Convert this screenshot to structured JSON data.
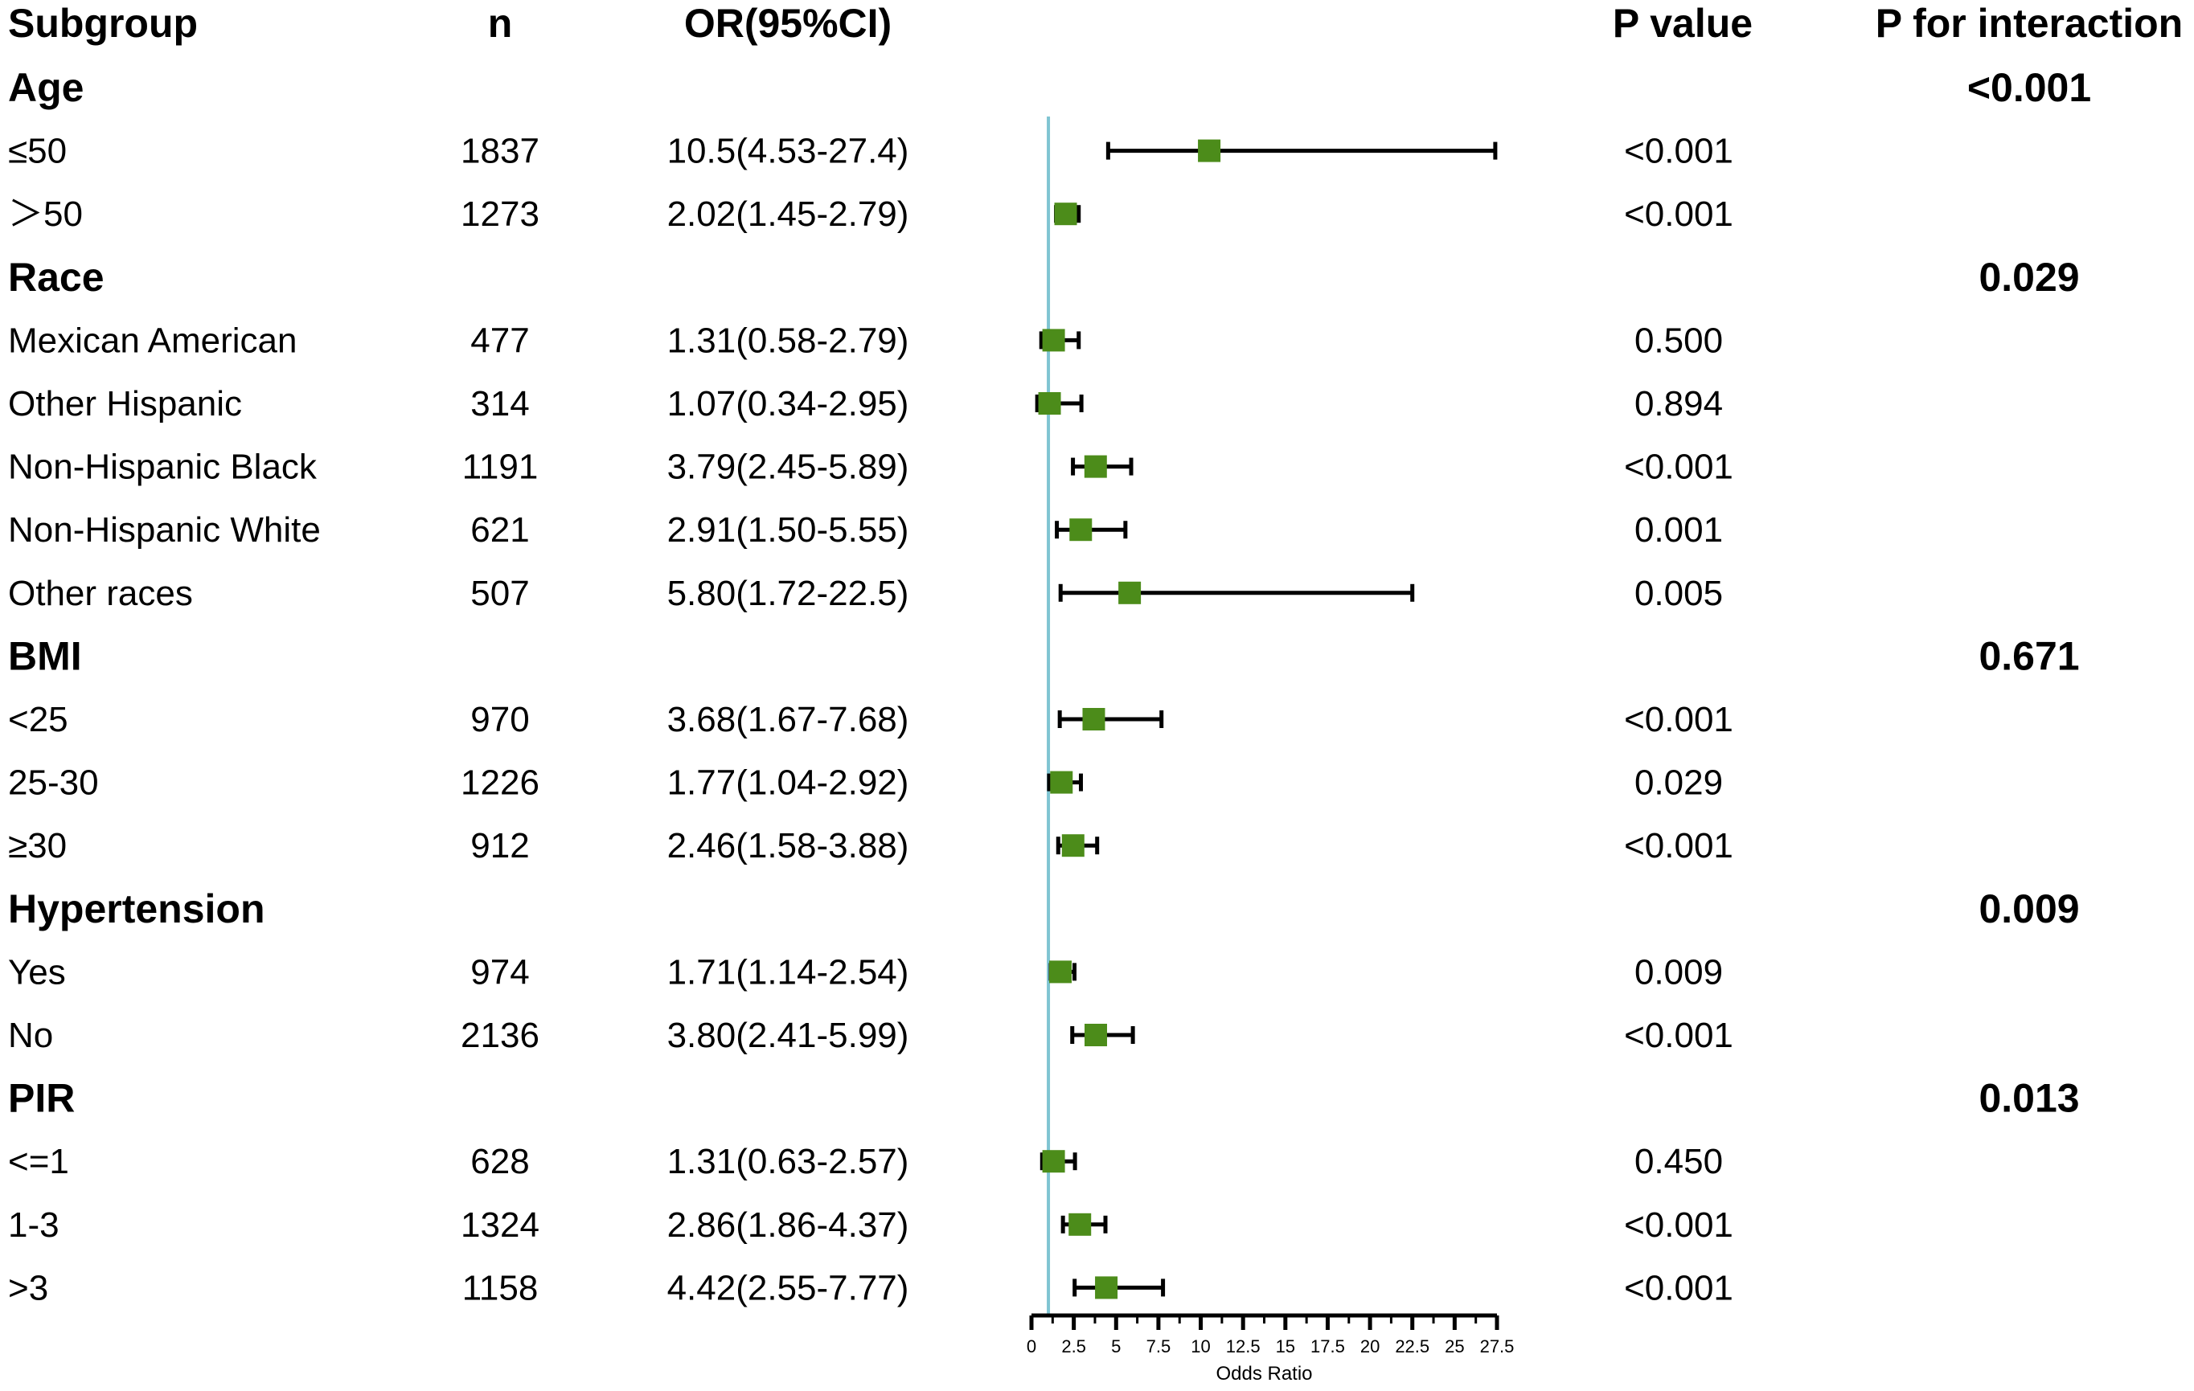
{
  "headers": {
    "subgroup": "Subgroup",
    "n": "n",
    "or": "OR(95%CI)",
    "p_value": "P value",
    "p_interaction": "P for interaction"
  },
  "colors": {
    "marker": "#4c8c1a",
    "reference_line": "#7fc4d2",
    "ci_line": "#000000"
  },
  "chart_data": {
    "type": "forest",
    "xlabel": "Odds Ratio",
    "xlim": [
      0,
      27.5
    ],
    "xticks": [
      "0",
      "2.5",
      "5",
      "7.5",
      "10",
      "12.5",
      "15",
      "17.5",
      "20",
      "22.5",
      "25",
      "27.5"
    ],
    "reference_value": 1,
    "groups": [
      {
        "name": "Age",
        "p_interaction": "<0.001",
        "rows": [
          {
            "label": "≤50",
            "n": "1837",
            "or_text": "10.5(4.53-27.4)",
            "p": "<0.001",
            "or": 10.5,
            "lo": 4.53,
            "hi": 27.4
          },
          {
            "label": "＞50",
            "n": "1273",
            "or_text": "2.02(1.45-2.79)",
            "p": "<0.001",
            "or": 2.02,
            "lo": 1.45,
            "hi": 2.79
          }
        ]
      },
      {
        "name": "Race",
        "p_interaction": "0.029",
        "rows": [
          {
            "label": "Mexican American",
            "n": "477",
            "or_text": "1.31(0.58-2.79)",
            "p": "0.500",
            "or": 1.31,
            "lo": 0.58,
            "hi": 2.79
          },
          {
            "label": "Other Hispanic",
            "n": "314",
            "or_text": "1.07(0.34-2.95)",
            "p": "0.894",
            "or": 1.07,
            "lo": 0.34,
            "hi": 2.95
          },
          {
            "label": "Non-Hispanic Black",
            "n": "1191",
            "or_text": "3.79(2.45-5.89)",
            "p": "<0.001",
            "or": 3.79,
            "lo": 2.45,
            "hi": 5.89
          },
          {
            "label": "Non-Hispanic White",
            "n": "621",
            "or_text": "2.91(1.50-5.55)",
            "p": "0.001",
            "or": 2.91,
            "lo": 1.5,
            "hi": 5.55
          },
          {
            "label": "Other races",
            "n": "507",
            "or_text": "5.80(1.72-22.5)",
            "p": "0.005",
            "or": 5.8,
            "lo": 1.72,
            "hi": 22.5
          }
        ]
      },
      {
        "name": "BMI",
        "p_interaction": "0.671",
        "rows": [
          {
            "label": "<25",
            "n": "970",
            "or_text": "3.68(1.67-7.68)",
            "p": "<0.001",
            "or": 3.68,
            "lo": 1.67,
            "hi": 7.68
          },
          {
            "label": "25-30",
            "n": "1226",
            "or_text": "1.77(1.04-2.92)",
            "p": "0.029",
            "or": 1.77,
            "lo": 1.04,
            "hi": 2.92
          },
          {
            "label": "≥30",
            "n": "912",
            "or_text": "2.46(1.58-3.88)",
            "p": "<0.001",
            "or": 2.46,
            "lo": 1.58,
            "hi": 3.88
          }
        ]
      },
      {
        "name": "Hypertension",
        "p_interaction": "0.009",
        "rows": [
          {
            "label": "Yes",
            "n": "974",
            "or_text": "1.71(1.14-2.54)",
            "p": "0.009",
            "or": 1.71,
            "lo": 1.14,
            "hi": 2.54
          },
          {
            "label": "No",
            "n": "2136",
            "or_text": "3.80(2.41-5.99)",
            "p": "<0.001",
            "or": 3.8,
            "lo": 2.41,
            "hi": 5.99
          }
        ]
      },
      {
        "name": "PIR",
        "p_interaction": "0.013",
        "rows": [
          {
            "label": "<=1",
            "n": "628",
            "or_text": "1.31(0.63-2.57)",
            "p": "0.450",
            "or": 1.31,
            "lo": 0.63,
            "hi": 2.57
          },
          {
            "label": "1-3",
            "n": "1324",
            "or_text": "2.86(1.86-4.37)",
            "p": "<0.001",
            "or": 2.86,
            "lo": 1.86,
            "hi": 4.37
          },
          {
            "label": ">3",
            "n": "1158",
            "or_text": "4.42(2.55-7.77)",
            "p": "<0.001",
            "or": 4.42,
            "lo": 2.55,
            "hi": 7.77
          }
        ]
      }
    ]
  }
}
